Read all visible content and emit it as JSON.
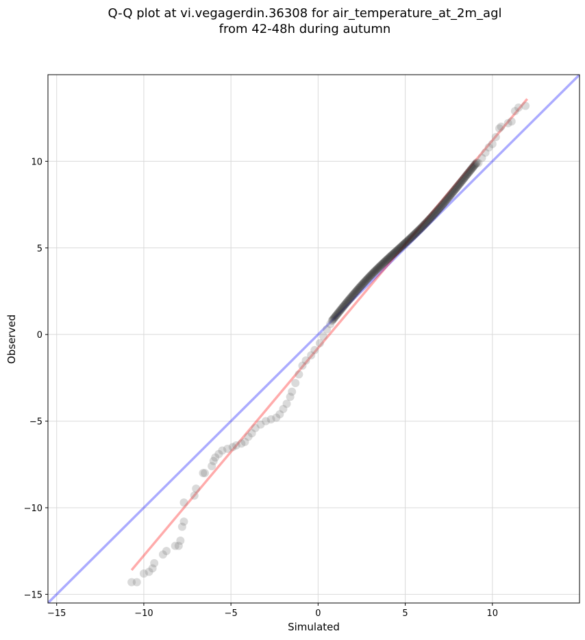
{
  "chart_data": {
    "type": "scatter",
    "title_line1": "Q-Q plot at vi.vegagerdin.36308 for air_temperature_at_2m_agl",
    "title_line2": "from 42-48h during autumn",
    "xlabel": "Simulated",
    "ylabel": "Observed",
    "xlim": [
      -15.5,
      15
    ],
    "ylim": [
      -15.5,
      15
    ],
    "grid": true,
    "x_ticks": [
      -15,
      -10,
      -5,
      0,
      5,
      10
    ],
    "y_ticks": [
      -15,
      -10,
      -5,
      0,
      5,
      10
    ],
    "x_tick_labels": [
      "−15",
      "−10",
      "−5",
      "0",
      "5",
      "10"
    ],
    "y_tick_labels": [
      "−15",
      "−10",
      "−5",
      "0",
      "5",
      "10"
    ],
    "reference_line": {
      "name": "1:1",
      "color": "#0000ff",
      "points": [
        [
          -15.5,
          -15.5
        ],
        [
          15,
          15
        ]
      ]
    },
    "fit_line": {
      "color": "#ff0000",
      "points": [
        [
          -10.7,
          -13.6
        ],
        [
          12.0,
          13.6
        ]
      ]
    },
    "tail_points": [
      [
        -10.7,
        -14.3
      ],
      [
        -10.4,
        -14.3
      ],
      [
        -10.0,
        -13.8
      ],
      [
        -9.7,
        -13.7
      ],
      [
        -9.5,
        -13.5
      ],
      [
        -9.4,
        -13.2
      ],
      [
        -8.9,
        -12.7
      ],
      [
        -8.7,
        -12.5
      ],
      [
        -8.2,
        -12.2
      ],
      [
        -8.0,
        -12.2
      ],
      [
        -7.9,
        -11.9
      ],
      [
        -7.8,
        -11.1
      ],
      [
        -7.7,
        -10.8
      ],
      [
        -7.7,
        -9.7
      ],
      [
        -7.1,
        -9.3
      ],
      [
        -7.0,
        -8.9
      ],
      [
        -6.6,
        -8.0
      ],
      [
        -6.5,
        -8.0
      ],
      [
        -6.1,
        -7.6
      ],
      [
        -6.0,
        -7.3
      ],
      [
        -5.9,
        -7.1
      ],
      [
        -5.7,
        -6.9
      ],
      [
        -5.5,
        -6.7
      ],
      [
        -5.2,
        -6.6
      ],
      [
        -4.9,
        -6.5
      ],
      [
        -4.7,
        -6.4
      ],
      [
        -4.4,
        -6.3
      ],
      [
        -4.2,
        -6.2
      ],
      [
        -4.0,
        -5.9
      ],
      [
        -3.8,
        -5.7
      ],
      [
        -3.6,
        -5.4
      ],
      [
        -3.3,
        -5.2
      ],
      [
        -3.0,
        -5.0
      ],
      [
        -2.7,
        -4.9
      ],
      [
        -2.4,
        -4.8
      ],
      [
        -2.2,
        -4.6
      ],
      [
        -2.0,
        -4.3
      ],
      [
        -1.8,
        -4.0
      ],
      [
        -1.6,
        -3.6
      ],
      [
        -1.5,
        -3.3
      ],
      [
        -1.3,
        -2.8
      ],
      [
        -1.1,
        -2.3
      ],
      [
        -0.9,
        -1.8
      ],
      [
        -0.7,
        -1.5
      ],
      [
        -0.4,
        -1.2
      ],
      [
        -0.2,
        -0.9
      ],
      [
        0.1,
        -0.5
      ],
      [
        0.3,
        -0.1
      ],
      [
        0.5,
        0.3
      ],
      [
        0.7,
        0.6
      ],
      [
        9.2,
        9.9
      ],
      [
        9.4,
        10.2
      ],
      [
        9.6,
        10.5
      ],
      [
        9.8,
        10.8
      ],
      [
        10.0,
        11.0
      ],
      [
        10.2,
        11.4
      ],
      [
        10.4,
        11.9
      ],
      [
        10.5,
        12.0
      ],
      [
        10.9,
        12.2
      ],
      [
        11.1,
        12.3
      ],
      [
        11.3,
        12.9
      ],
      [
        11.5,
        13.1
      ],
      [
        11.9,
        13.2
      ]
    ],
    "body_points_range": {
      "x": [
        0.8,
        9.1
      ],
      "y": [
        0.8,
        9.8
      ]
    }
  }
}
